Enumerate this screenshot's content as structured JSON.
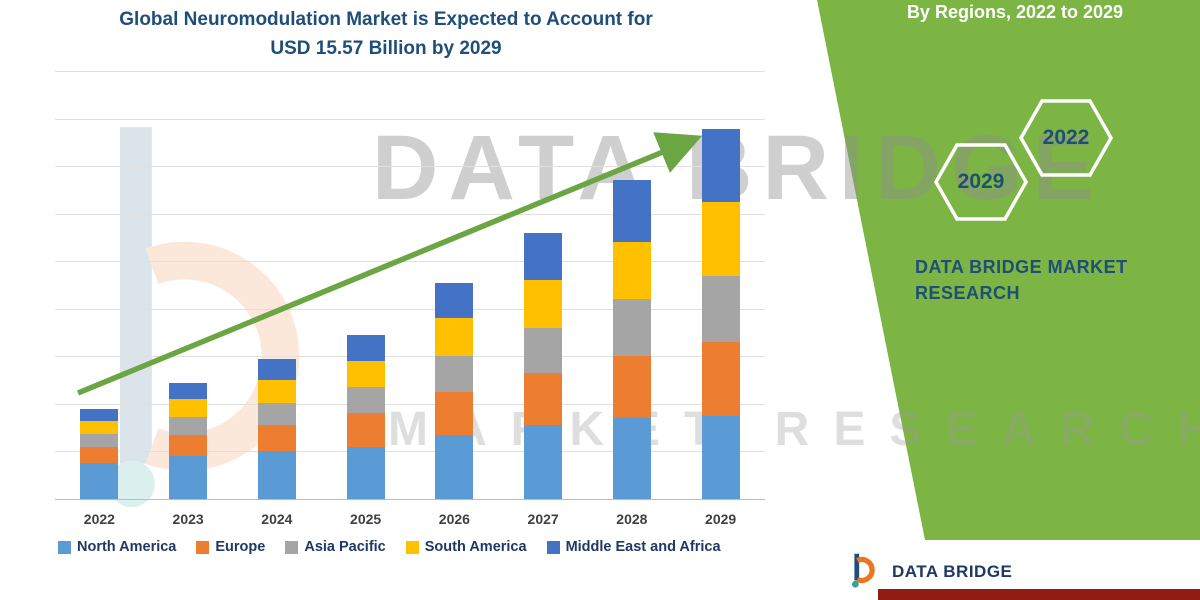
{
  "title": {
    "line1": "Global Neuromodulation Market is Expected to Account for",
    "line2": "USD 15.57 Billion by 2029"
  },
  "sidebar": {
    "heading": "By Regions, 2022 to 2029",
    "hexagons": {
      "upper": "2022",
      "lower": "2029"
    },
    "brand_line1": "DATA BRIDGE MARKET",
    "brand_line2": "RESEARCH"
  },
  "watermark": {
    "title": "DATA BRIDGE",
    "subtitle": "MARKET RESEARCH"
  },
  "footer": {
    "brand": "DATA BRIDGE"
  },
  "colors": {
    "accent_green": "#7CB543",
    "arrow_green": "#6CA644",
    "title_blue": "#1F4E79",
    "legend_text": "#1F3864",
    "footer_bar_red": "#8F1D14"
  },
  "chart_data": {
    "type": "bar",
    "stacked": true,
    "title": "Global Neuromodulation Market is Expected to Account for USD 15.57 Billion by 2029",
    "categories": [
      "2022",
      "2023",
      "2024",
      "2025",
      "2026",
      "2027",
      "2028",
      "2029"
    ],
    "series": [
      {
        "name": "North America",
        "color": "#5B9BD5",
        "values": [
          1.5,
          1.8,
          2.0,
          2.2,
          2.7,
          3.1,
          3.4,
          3.5
        ]
      },
      {
        "name": "Europe",
        "color": "#ED7D31",
        "values": [
          0.7,
          0.9,
          1.1,
          1.4,
          1.8,
          2.2,
          2.6,
          3.1
        ]
      },
      {
        "name": "Asia Pacific",
        "color": "#A5A5A5",
        "values": [
          0.55,
          0.75,
          0.95,
          1.1,
          1.5,
          1.9,
          2.4,
          2.8
        ]
      },
      {
        "name": "South America",
        "color": "#FFC000",
        "values": [
          0.55,
          0.75,
          0.95,
          1.1,
          1.6,
          2.0,
          2.4,
          3.1
        ]
      },
      {
        "name": "Middle East and Africa",
        "color": "#4472C4",
        "values": [
          0.5,
          0.7,
          0.9,
          1.1,
          1.5,
          2.0,
          2.6,
          3.07
        ]
      }
    ],
    "totals_estimated_usd_billion": [
      3.8,
      4.9,
      5.9,
      6.9,
      9.1,
      11.2,
      13.4,
      15.57
    ],
    "final_value_label": "USD 15.57 Billion by 2029",
    "xlabel": "",
    "ylabel": "",
    "ylim": [
      0,
      18
    ],
    "gridline_step": 2,
    "y_axis_labels_visible": false,
    "grid": true,
    "legend_position": "bottom",
    "trend_arrow": "upward"
  }
}
